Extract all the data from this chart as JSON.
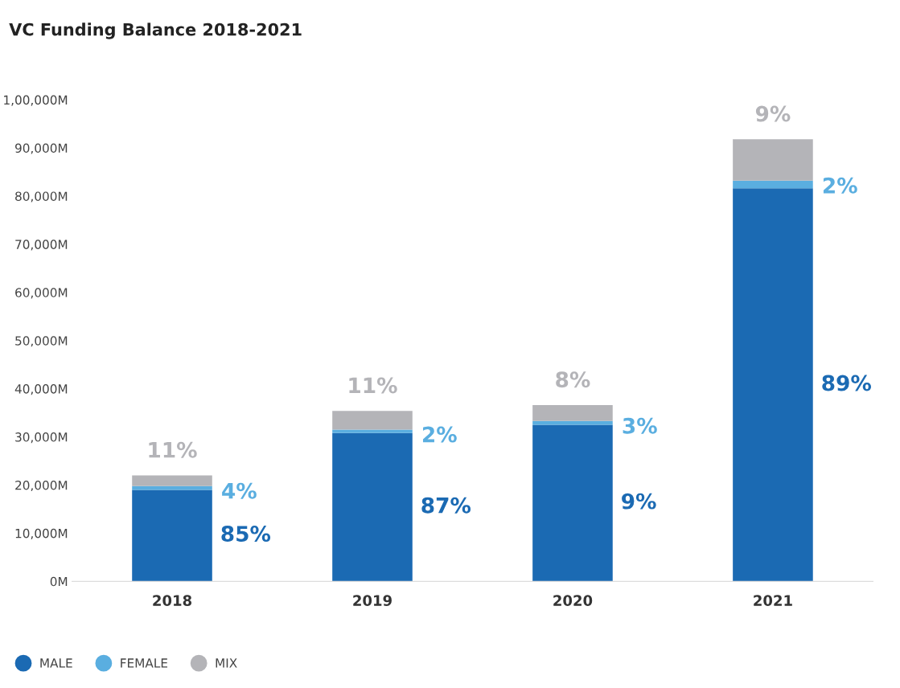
{
  "chart_data": {
    "type": "bar",
    "title": "VC Funding Balance 2018-2021",
    "stacked": true,
    "categories": [
      "2018",
      "2019",
      "2020",
      "2021"
    ],
    "series": [
      {
        "name": "MALE",
        "color": "#1b6ab3",
        "values": [
          19000,
          30800,
          32500,
          81600
        ]
      },
      {
        "name": "FEMALE",
        "color": "#5aaee0",
        "values": [
          800,
          700,
          800,
          1600
        ]
      },
      {
        "name": "MIX",
        "color": "#b4b4b8",
        "values": [
          2200,
          3900,
          3300,
          8600
        ]
      }
    ],
    "annotations": [
      "85%",
      "87%",
      "9%",
      "89%",
      {
        "text": "4%",
        "x": "2018",
        "y": 19800
      },
      {
        "text": "2%",
        "x": "2019",
        "y": 31500
      },
      {
        "text": "3%",
        "x": "2020",
        "y": 33300
      },
      {
        "text": "2%",
        "x": "2021",
        "y": 83200
      },
      {
        "text": "11%",
        "x": "2018",
        "y": 22000
      },
      {
        "text": "11%",
        "x": "2019",
        "y": 35400
      },
      {
        "text": "8%",
        "x": "2020",
        "y": 36600
      },
      {
        "text": "9%",
        "x": "2021",
        "y": 91800
      }
    ],
    "ylim": [
      0,
      100000
    ],
    "yticks": [
      {
        "value": 0,
        "label": "0M"
      },
      {
        "value": 10000,
        "label": "10,000M"
      },
      {
        "value": 20000,
        "label": "20,000M"
      },
      {
        "value": 30000,
        "label": "30,000M"
      },
      {
        "value": 40000,
        "label": "40,000M"
      },
      {
        "value": 50000,
        "label": "50,000M"
      },
      {
        "value": 60000,
        "label": "60,000M"
      },
      {
        "value": 70000,
        "label": "70,000M"
      },
      {
        "value": 80000,
        "label": "80,000M"
      },
      {
        "value": 90000,
        "label": "90,000M"
      },
      {
        "value": 100000,
        "label": "1,00,000M"
      }
    ],
    "grid": false,
    "legend": "bottom left"
  }
}
